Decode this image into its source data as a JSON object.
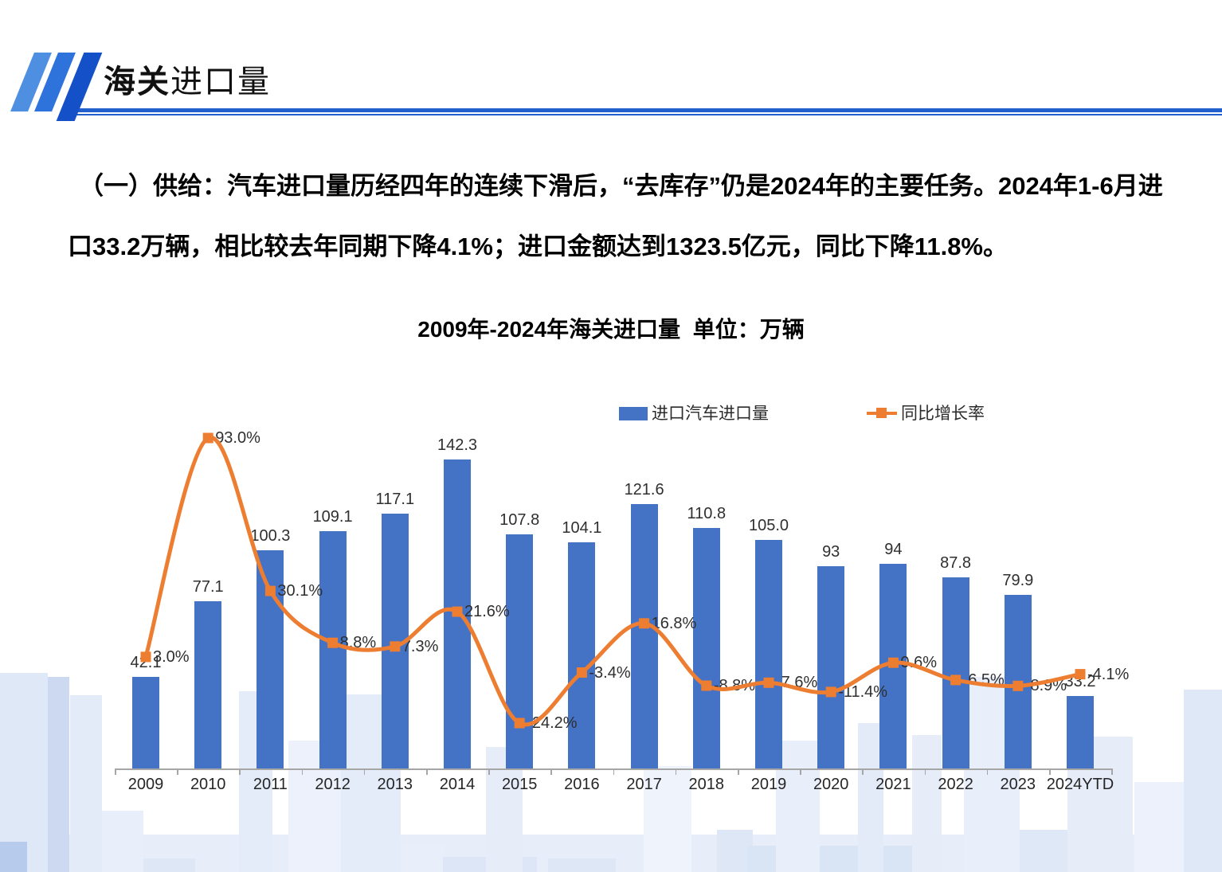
{
  "header": {
    "title_bold": "海关",
    "title_rest": "进口量"
  },
  "body": {
    "line1": "（一）供给：汽车进口量历经四年的连续下滑后，“去库存”仍是2024年的主要任务。2024年1-6月进",
    "line2": "口33.2万辆，相比较去年同期下降4.1%；进口金额达到1323.5亿元，同比下降11.8%。"
  },
  "chart_data": {
    "type": "bar",
    "title": "2009年-2024年海关进口量  单位：万辆",
    "categories": [
      "2009",
      "2010",
      "2011",
      "2012",
      "2013",
      "2014",
      "2015",
      "2016",
      "2017",
      "2018",
      "2019",
      "2020",
      "2021",
      "2022",
      "2023",
      "2024YTD"
    ],
    "series": [
      {
        "name": "进口汽车进口量",
        "type": "bar",
        "color": "#4472C4",
        "values": [
          42.1,
          77.1,
          100.3,
          109.1,
          117.1,
          142.3,
          107.8,
          104.1,
          121.6,
          110.8,
          105.0,
          93,
          94,
          87.8,
          79.9,
          33.2
        ],
        "labels": [
          "42.1",
          "77.1",
          "100.3",
          "109.1",
          "117.1",
          "142.3",
          "107.8",
          "104.1",
          "121.6",
          "110.8",
          "105.0",
          "93",
          "94",
          "87.8",
          "79.9",
          "33.2"
        ]
      },
      {
        "name": "同比增长率",
        "type": "line",
        "color": "#ED7D31",
        "values": [
          3.0,
          93.0,
          30.1,
          8.8,
          7.3,
          21.6,
          -24.2,
          -3.4,
          16.8,
          -8.8,
          -7.6,
          -11.4,
          0.6,
          -6.5,
          -8.9,
          -4.1
        ],
        "labels": [
          "3.0%",
          "93.0%",
          "30.1%",
          "8.8%",
          "7.3%",
          "21.6%",
          "-24.2%",
          "-3.4%",
          "16.8%",
          "-8.8%",
          "-7.6%",
          "-11.4%",
          "0.6%",
          "-6.5%",
          "-8.9%",
          "-4.1%"
        ]
      }
    ],
    "legend_position": "top",
    "grid": false,
    "ylabel": "",
    "xlabel": "",
    "unit": "万辆"
  },
  "colors": {
    "bar": "#4472C4",
    "line": "#ED7D31",
    "accent_blue": "#2160cc"
  }
}
